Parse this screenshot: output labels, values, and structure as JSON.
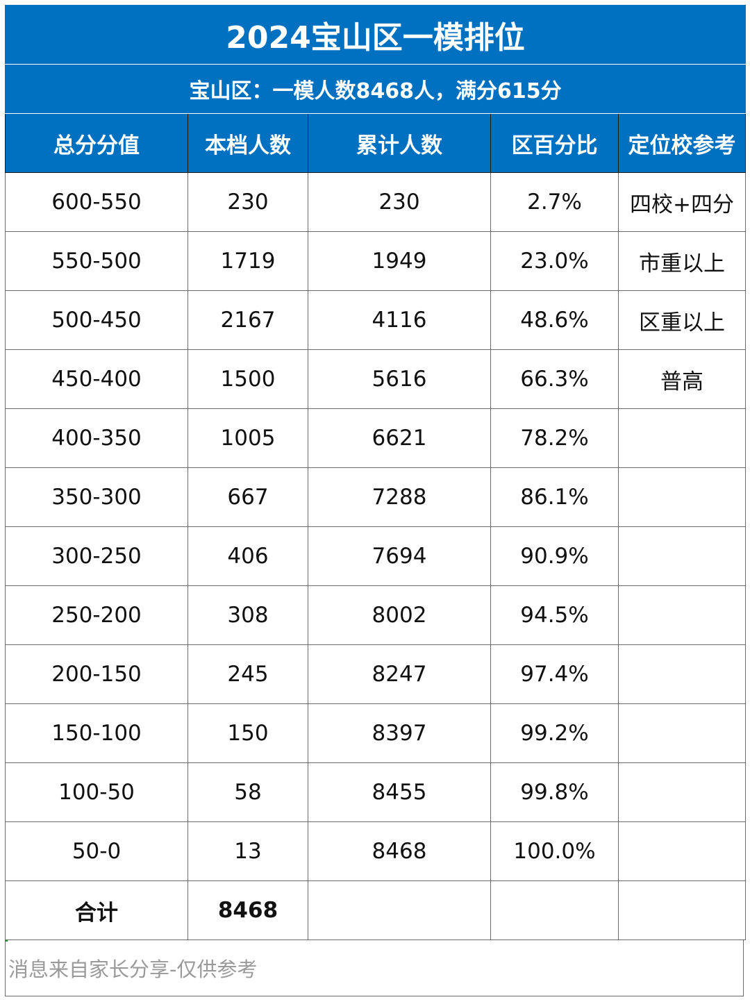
{
  "title": "2024宝山区一模排位",
  "subtitle": "宝山区：一模人数8468人，满分615分",
  "columns": [
    "总分分值",
    "本档人数",
    "累计人数",
    "区百分比",
    "定位校参考"
  ],
  "rows": [
    [
      "600-550",
      "230",
      "230",
      "2.7%",
      "四校+四分"
    ],
    [
      "550-500",
      "1719",
      "1949",
      "23.0%",
      "市重以上"
    ],
    [
      "500-450",
      "2167",
      "4116",
      "48.6%",
      "区重以上"
    ],
    [
      "450-400",
      "1500",
      "5616",
      "66.3%",
      "普高"
    ],
    [
      "400-350",
      "1005",
      "6621",
      "78.2%",
      ""
    ],
    [
      "350-300",
      "667",
      "7288",
      "86.1%",
      ""
    ],
    [
      "300-250",
      "406",
      "7694",
      "90.9%",
      ""
    ],
    [
      "250-200",
      "308",
      "8002",
      "94.5%",
      ""
    ],
    [
      "200-150",
      "245",
      "8247",
      "97.4%",
      ""
    ],
    [
      "150-100",
      "150",
      "8397",
      "99.2%",
      ""
    ],
    [
      "100-50",
      "58",
      "8455",
      "99.8%",
      ""
    ],
    [
      "50-0",
      "13",
      "8468",
      "100.0%",
      ""
    ]
  ],
  "total": {
    "label": "合计",
    "count": "8468",
    "cumulative": "",
    "percent": "",
    "reference": ""
  },
  "note": "消息来自家长分享-仅供参考",
  "colors": {
    "header_bg": "#0070c0",
    "header_text": "#ffffff",
    "note_text": "#9a9a9a"
  }
}
